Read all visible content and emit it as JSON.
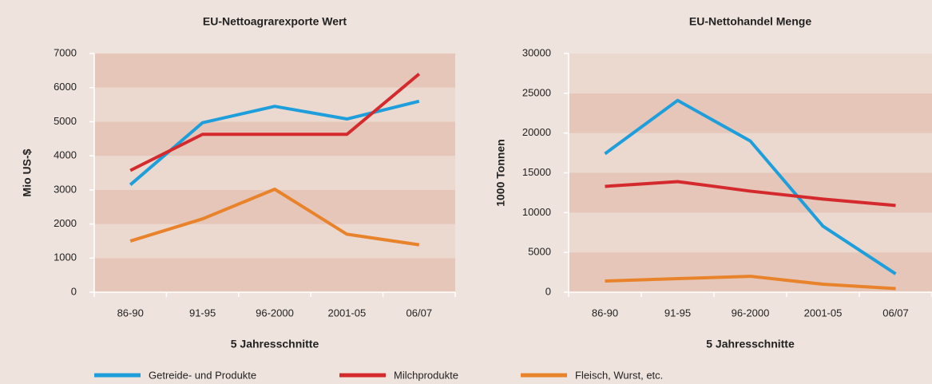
{
  "chart_data": [
    {
      "type": "line",
      "title": "EU-Nettoagrarexporte Wert",
      "y_label": "Mio US-$",
      "x_label": "5 Jahresschnitte",
      "categories": [
        "86-90",
        "91-95",
        "96-2000",
        "2001-05",
        "06/07"
      ],
      "ylim": [
        0,
        7000
      ],
      "yticks": [
        0,
        1000,
        2000,
        3000,
        4000,
        5000,
        6000,
        7000
      ],
      "series": [
        {
          "name": "Getreide- und Produkte",
          "color": "#1e9fdc",
          "values": [
            3150,
            4970,
            5450,
            5080,
            5600
          ]
        },
        {
          "name": "Milchprodukte",
          "color": "#d42a2e",
          "values": [
            3570,
            4630,
            4630,
            4630,
            6400
          ]
        },
        {
          "name": "Fleisch, Wurst, etc.",
          "color": "#e8832b",
          "values": [
            1500,
            2150,
            3020,
            1700,
            1390
          ]
        }
      ]
    },
    {
      "type": "line",
      "title": "EU-Nettohandel Menge",
      "y_label": "1000 Tonnen",
      "x_label": "5 Jahresschnitte",
      "categories": [
        "86-90",
        "91-95",
        "96-2000",
        "2001-05",
        "06/07"
      ],
      "ylim": [
        0,
        30000
      ],
      "yticks": [
        0,
        5000,
        10000,
        15000,
        20000,
        25000,
        30000
      ],
      "series": [
        {
          "color": "#1e9fdc",
          "values": [
            17400,
            24100,
            19000,
            8300,
            2300
          ]
        },
        {
          "color": "#d42a2e",
          "values": [
            13300,
            13900,
            12700,
            11700,
            10900
          ]
        },
        {
          "color": "#e8832b",
          "values": [
            1400,
            1700,
            2000,
            1000,
            450
          ]
        }
      ]
    }
  ]
}
